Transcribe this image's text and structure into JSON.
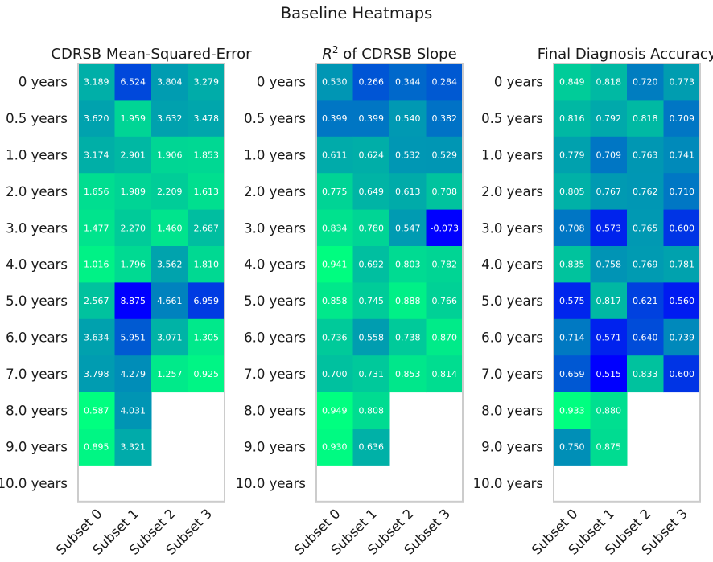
{
  "figure": {
    "suptitle": "Baseline Heatmaps"
  },
  "colors": {
    "low": "#0000ff",
    "high": "#00ff80",
    "frame": "#cccccc",
    "text": "#ffffff"
  },
  "chart_data": [
    {
      "type": "heatmap",
      "title": "CDRSB Mean-Squared-Error",
      "title_parts": [
        {
          "text": "CDRSB Mean-Squared-Error",
          "sup": false
        }
      ],
      "colormap": "winter_r",
      "x_labels": [
        "Subset 0",
        "Subset 1",
        "Subset 2",
        "Subset 3"
      ],
      "y_labels": [
        "0 years",
        "0.5 years",
        "1.0 years",
        "2.0 years",
        "3.0 years",
        "4.0 years",
        "5.0 years",
        "6.0 years",
        "7.0 years",
        "8.0 years",
        "9.0 years",
        "10.0 years"
      ],
      "values": [
        [
          "3.189",
          "6.524",
          "3.804",
          "3.279"
        ],
        [
          "3.620",
          "1.959",
          "3.632",
          "3.478"
        ],
        [
          "3.174",
          "2.901",
          "1.906",
          "1.853"
        ],
        [
          "1.656",
          "1.989",
          "2.209",
          "1.613"
        ],
        [
          "1.477",
          "2.270",
          "1.460",
          "2.687"
        ],
        [
          "1.016",
          "1.796",
          "3.562",
          "1.810"
        ],
        [
          "2.567",
          "8.875",
          "4.661",
          "6.959"
        ],
        [
          "3.634",
          "5.951",
          "3.071",
          "1.305"
        ],
        [
          "3.798",
          "4.279",
          "1.257",
          "0.925"
        ],
        [
          "0.587",
          "4.031",
          null,
          null
        ],
        [
          "0.895",
          "3.321",
          null,
          null
        ],
        [
          null,
          null,
          null,
          null
        ]
      ],
      "higher_is_better": false
    },
    {
      "type": "heatmap",
      "title": "R2 of CDRSB Slope",
      "title_parts": [
        {
          "text": "R",
          "sup": false
        },
        {
          "text": "2",
          "sup": true
        },
        {
          "text": " of CDRSB Slope",
          "sup": false
        }
      ],
      "colormap": "winter",
      "x_labels": [
        "Subset 0",
        "Subset 1",
        "Subset 2",
        "Subset 3"
      ],
      "y_labels": [
        "0 years",
        "0.5 years",
        "1.0 years",
        "2.0 years",
        "3.0 years",
        "4.0 years",
        "5.0 years",
        "6.0 years",
        "7.0 years",
        "8.0 years",
        "9.0 years",
        "10.0 years"
      ],
      "values": [
        [
          "0.530",
          "0.266",
          "0.344",
          "0.284"
        ],
        [
          "0.399",
          "0.399",
          "0.540",
          "0.382"
        ],
        [
          "0.611",
          "0.624",
          "0.532",
          "0.529"
        ],
        [
          "0.775",
          "0.649",
          "0.613",
          "0.708"
        ],
        [
          "0.834",
          "0.780",
          "0.547",
          "-0.073"
        ],
        [
          "0.941",
          "0.692",
          "0.803",
          "0.782"
        ],
        [
          "0.858",
          "0.745",
          "0.888",
          "0.766"
        ],
        [
          "0.736",
          "0.558",
          "0.738",
          "0.870"
        ],
        [
          "0.700",
          "0.731",
          "0.853",
          "0.814"
        ],
        [
          "0.949",
          "0.808",
          null,
          null
        ],
        [
          "0.930",
          "0.636",
          null,
          null
        ],
        [
          null,
          null,
          null,
          null
        ]
      ],
      "higher_is_better": true
    },
    {
      "type": "heatmap",
      "title": "Final Diagnosis Accuracy",
      "title_parts": [
        {
          "text": "Final Diagnosis Accuracy",
          "sup": false
        }
      ],
      "colormap": "winter",
      "x_labels": [
        "Subset 0",
        "Subset 1",
        "Subset 2",
        "Subset 3"
      ],
      "y_labels": [
        "0 years",
        "0.5 years",
        "1.0 years",
        "2.0 years",
        "3.0 years",
        "4.0 years",
        "5.0 years",
        "6.0 years",
        "7.0 years",
        "8.0 years",
        "9.0 years",
        "10.0 years"
      ],
      "values": [
        [
          "0.849",
          "0.818",
          "0.720",
          "0.773"
        ],
        [
          "0.816",
          "0.792",
          "0.818",
          "0.709"
        ],
        [
          "0.779",
          "0.709",
          "0.763",
          "0.741"
        ],
        [
          "0.805",
          "0.767",
          "0.762",
          "0.710"
        ],
        [
          "0.708",
          "0.573",
          "0.765",
          "0.600"
        ],
        [
          "0.835",
          "0.758",
          "0.769",
          "0.781"
        ],
        [
          "0.575",
          "0.817",
          "0.621",
          "0.560"
        ],
        [
          "0.714",
          "0.571",
          "0.640",
          "0.739"
        ],
        [
          "0.659",
          "0.515",
          "0.833",
          "0.600"
        ],
        [
          "0.933",
          "0.880",
          null,
          null
        ],
        [
          "0.750",
          "0.875",
          null,
          null
        ],
        [
          null,
          null,
          null,
          null
        ]
      ],
      "higher_is_better": true
    }
  ]
}
